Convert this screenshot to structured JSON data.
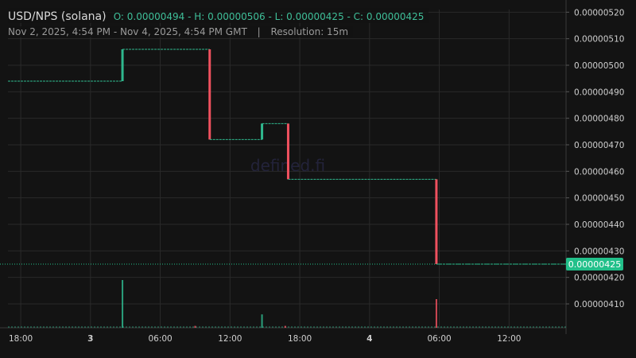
{
  "header": {
    "pair": "USD/NPS (solana)",
    "ohlc": "O: 0.00000494 - H: 0.00000506 - L: 0.00000425 - C: 0.00000425",
    "range": "Nov 2, 2025, 4:54 PM - Nov 4, 2025, 4:54 PM GMT",
    "separator": "|",
    "resolution": "Resolution: 15m"
  },
  "watermark": "defined.fi",
  "colors": {
    "up": "#2fb88e",
    "down": "#f0515f",
    "background": "#131313",
    "grid": "#2a2a2a",
    "price_tag": "#22c08a"
  },
  "chart_data": {
    "type": "candlestick",
    "x_ticks": [
      "18:00",
      "3",
      "06:00",
      "12:00",
      "18:00",
      "4",
      "06:00",
      "12:00"
    ],
    "x_ticks_bold": [
      false,
      true,
      false,
      false,
      false,
      true,
      false,
      false
    ],
    "y_ticks": [
      "0.00000520",
      "0.00000510",
      "0.00000500",
      "0.00000490",
      "0.00000480",
      "0.00000470",
      "0.00000460",
      "0.00000450",
      "0.00000440",
      "0.00000430",
      "0.00000420",
      "0.00000410"
    ],
    "ylim": [
      4.01e-06,
      5.21e-06
    ],
    "grid": true,
    "last_price_label": "0.00000425",
    "last_price": 4.25e-06,
    "price_steps": [
      {
        "start": "2025-11-02 16:54",
        "end": "2025-11-03 02:45",
        "level": 4.94e-06
      },
      {
        "start": "2025-11-03 02:45",
        "end": "2025-11-03 02:45",
        "from": 4.94e-06,
        "to": 5.06e-06,
        "direction": "up"
      },
      {
        "start": "2025-11-03 02:45",
        "end": "2025-11-03 10:15",
        "level": 5.06e-06
      },
      {
        "start": "2025-11-03 10:15",
        "end": "2025-11-03 10:15",
        "from": 5.06e-06,
        "to": 4.72e-06,
        "direction": "down"
      },
      {
        "start": "2025-11-03 10:15",
        "end": "2025-11-03 14:45",
        "level": 4.72e-06
      },
      {
        "start": "2025-11-03 14:45",
        "end": "2025-11-03 14:45",
        "from": 4.72e-06,
        "to": 4.78e-06,
        "direction": "up"
      },
      {
        "start": "2025-11-03 14:45",
        "end": "2025-11-03 17:00",
        "level": 4.78e-06
      },
      {
        "start": "2025-11-03 17:00",
        "end": "2025-11-03 17:00",
        "from": 4.78e-06,
        "to": 4.57e-06,
        "direction": "down"
      },
      {
        "start": "2025-11-03 17:00",
        "end": "2025-11-04 05:45",
        "level": 4.57e-06
      },
      {
        "start": "2025-11-04 05:45",
        "end": "2025-11-04 05:45",
        "from": 4.57e-06,
        "to": 4.25e-06,
        "direction": "down"
      },
      {
        "start": "2025-11-04 05:45",
        "end": "2025-11-04 16:54",
        "level": 4.25e-06
      }
    ],
    "volume": [
      {
        "time": "2025-11-03 02:45",
        "relative": 1.0,
        "direction": "up"
      },
      {
        "time": "2025-11-03 14:45",
        "relative": 0.28,
        "direction": "up"
      },
      {
        "time": "2025-11-04 05:45",
        "relative": 0.6,
        "direction": "down"
      },
      {
        "time": "2025-11-03 09:00",
        "relative": 0.04,
        "direction": "down"
      },
      {
        "time": "2025-11-03 16:45",
        "relative": 0.04,
        "direction": "down"
      }
    ]
  }
}
